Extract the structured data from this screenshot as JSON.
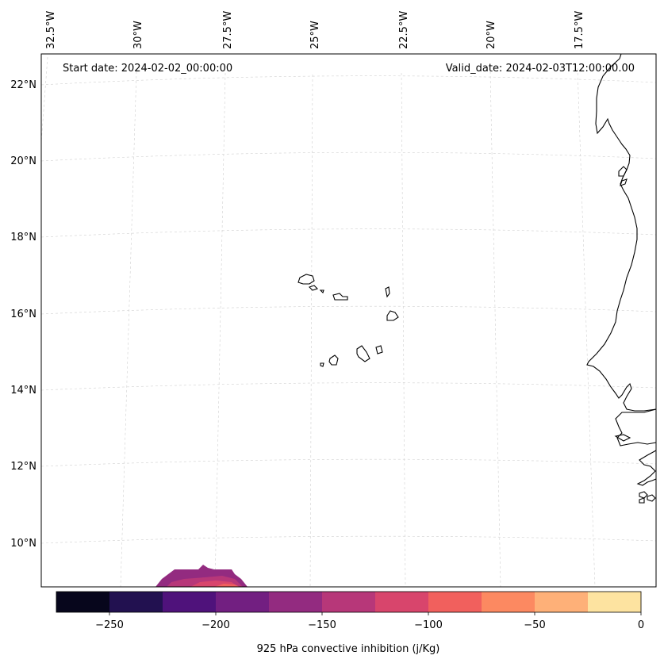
{
  "header": {
    "start_date": "Start date: 2024-02-02_00:00:00",
    "valid_date": "Valid_date: 2024-02-03T12:00:00.00"
  },
  "longitude_labels": [
    "32.5°W",
    "30°W",
    "27.5°W",
    "25°W",
    "22.5°W",
    "20°W",
    "17.5°W"
  ],
  "latitude_labels": [
    "22°N",
    "20°N",
    "18°N",
    "16°N",
    "14°N",
    "12°N",
    "10°N"
  ],
  "colorbar": {
    "label": "925 hPa convective inhibition (j/Kg)",
    "ticks": [
      "−250",
      "−200",
      "−150",
      "−100",
      "−50",
      "0"
    ],
    "levels": [
      -275,
      -250,
      -225,
      -200,
      -175,
      -150,
      -125,
      -100,
      -75,
      -50,
      -25,
      0
    ],
    "colors": [
      "#07061c",
      "#221150",
      "#4f127b",
      "#721f81",
      "#932b80",
      "#b73779",
      "#d8456c",
      "#f1605d",
      "#fc8961",
      "#feb078",
      "#fde3a0"
    ]
  },
  "map": {
    "extent": {
      "lon_min": -33,
      "lon_max": -16.2,
      "lat_min": 8.8,
      "lat_max": 22.8
    },
    "field": "925 hPa convective inhibition",
    "units": "j/Kg"
  }
}
